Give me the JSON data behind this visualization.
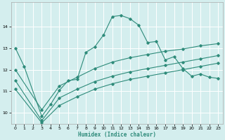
{
  "xlabel": "Humidex (Indice chaleur)",
  "bg_color": "#d4eeee",
  "grid_color": "#ffffff",
  "line_color": "#2e8b7a",
  "xlim": [
    -0.5,
    23.5
  ],
  "ylim": [
    9.5,
    15.1
  ],
  "yticks": [
    10,
    11,
    12,
    13,
    14
  ],
  "xticks": [
    0,
    1,
    2,
    3,
    4,
    5,
    6,
    7,
    8,
    9,
    10,
    11,
    12,
    13,
    14,
    15,
    16,
    17,
    18,
    19,
    20,
    21,
    22,
    23
  ],
  "series1_x": [
    0,
    1,
    3,
    4,
    5,
    6,
    7,
    8,
    9,
    10,
    11,
    12,
    13,
    14,
    15,
    16,
    17,
    18,
    19,
    20,
    21,
    22,
    23
  ],
  "series1_y": [
    13.0,
    12.15,
    9.85,
    10.4,
    11.05,
    11.5,
    11.55,
    12.8,
    13.05,
    13.6,
    14.45,
    14.5,
    14.35,
    14.05,
    13.25,
    13.3,
    12.45,
    12.6,
    12.05,
    11.7,
    11.8,
    11.65,
    11.6
  ],
  "series2_x": [
    0,
    3,
    5,
    7,
    9,
    11,
    13,
    15,
    17,
    19,
    21,
    23
  ],
  "series2_y": [
    12.0,
    10.15,
    11.25,
    11.65,
    12.05,
    12.35,
    12.55,
    12.7,
    12.85,
    12.95,
    13.1,
    13.2
  ],
  "series3_x": [
    0,
    3,
    5,
    7,
    9,
    11,
    13,
    15,
    17,
    19,
    21,
    23
  ],
  "series3_y": [
    11.5,
    9.65,
    10.7,
    11.1,
    11.45,
    11.7,
    11.9,
    12.05,
    12.2,
    12.35,
    12.5,
    12.65
  ],
  "series4_x": [
    0,
    3,
    5,
    7,
    9,
    11,
    13,
    15,
    17,
    19,
    21,
    23
  ],
  "series4_y": [
    11.1,
    9.55,
    10.35,
    10.75,
    11.1,
    11.35,
    11.55,
    11.7,
    11.85,
    12.0,
    12.15,
    12.3
  ]
}
